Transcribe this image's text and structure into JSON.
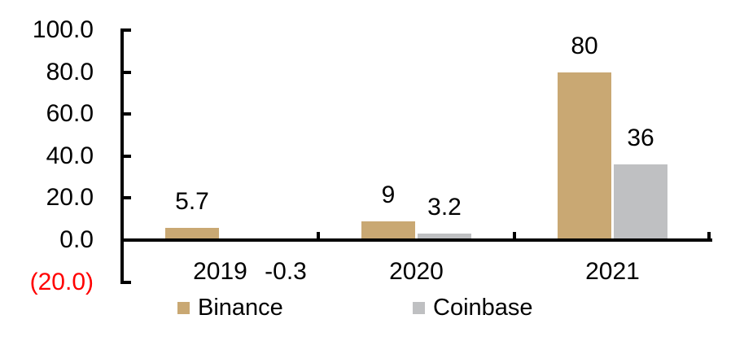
{
  "chart_data": {
    "type": "bar",
    "title": "",
    "categories": [
      "2019",
      "2020",
      "2021"
    ],
    "series": [
      {
        "name": "Binance",
        "color": "#C9A873",
        "values": [
          5.7,
          9,
          80
        ],
        "labels": [
          "5.7",
          "9",
          "80"
        ]
      },
      {
        "name": "Coinbase",
        "color": "#BFC0C2",
        "values": [
          -0.3,
          3.2,
          36
        ],
        "labels": [
          "-0.3",
          "3.2",
          "36"
        ]
      }
    ],
    "y_axis": {
      "min": -20,
      "max": 100,
      "ticks": [
        {
          "value": 100,
          "label": "100.0",
          "negative": false
        },
        {
          "value": 80,
          "label": "80.0",
          "negative": false
        },
        {
          "value": 60,
          "label": "60.0",
          "negative": false
        },
        {
          "value": 40,
          "label": "40.0",
          "negative": false
        },
        {
          "value": 20,
          "label": "20.0",
          "negative": false
        },
        {
          "value": 0,
          "label": "0.0",
          "negative": false
        },
        {
          "value": -20,
          "label": "(20.0)",
          "negative": true
        }
      ]
    },
    "xlabel": "",
    "ylabel": "",
    "grid": false,
    "legend_position": "bottom",
    "colors": {
      "axis": "#000000",
      "text": "#000000",
      "negative_tick_label": "#FF0000",
      "background": "#FFFFFF"
    }
  }
}
